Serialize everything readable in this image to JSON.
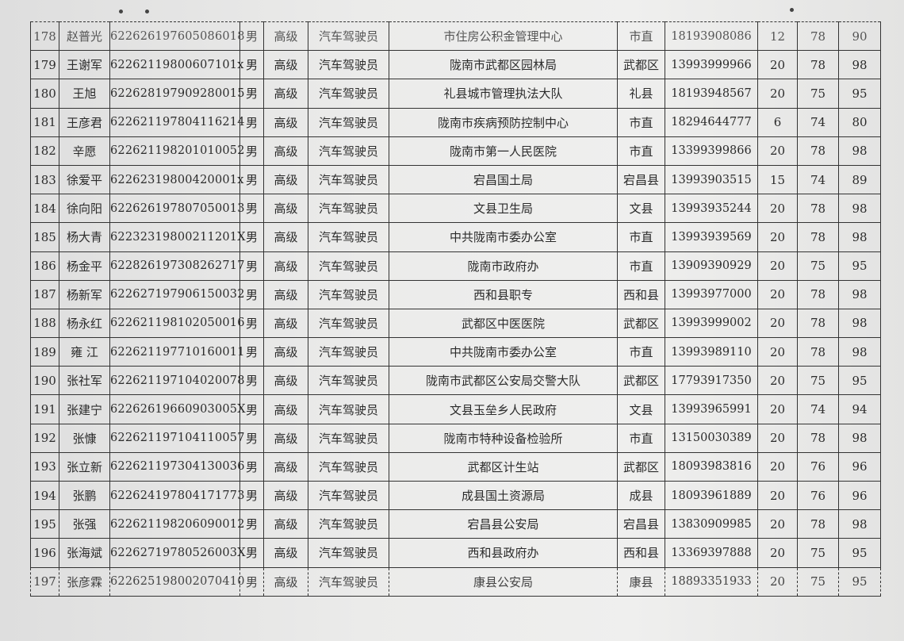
{
  "table": {
    "rows": [
      [
        "178",
        "赵普光",
        "622626197605086018",
        "男",
        "高级",
        "汽车驾驶员",
        "市住房公积金管理中心",
        "市直",
        "18193908086",
        "12",
        "78",
        "90"
      ],
      [
        "179",
        "王谢军",
        "62262119800607101x",
        "男",
        "高级",
        "汽车驾驶员",
        "陇南市武都区园林局",
        "武都区",
        "13993999966",
        "20",
        "78",
        "98"
      ],
      [
        "180",
        "王旭",
        "622628197909280015",
        "男",
        "高级",
        "汽车驾驶员",
        "礼县城市管理执法大队",
        "礼县",
        "18193948567",
        "20",
        "75",
        "95"
      ],
      [
        "181",
        "王彦君",
        "622621197804116214",
        "男",
        "高级",
        "汽车驾驶员",
        "陇南市疾病预防控制中心",
        "市直",
        "18294644777",
        "6",
        "74",
        "80"
      ],
      [
        "182",
        "辛愿",
        "622621198201010052",
        "男",
        "高级",
        "汽车驾驶员",
        "陇南市第一人民医院",
        "市直",
        "13399399866",
        "20",
        "78",
        "98"
      ],
      [
        "183",
        "徐爱平",
        "62262319800420001x",
        "男",
        "高级",
        "汽车驾驶员",
        "宕昌国土局",
        "宕昌县",
        "13993903515",
        "15",
        "74",
        "89"
      ],
      [
        "184",
        "徐向阳",
        "622626197807050013",
        "男",
        "高级",
        "汽车驾驶员",
        "文县卫生局",
        "文县",
        "13993935244",
        "20",
        "78",
        "98"
      ],
      [
        "185",
        "杨大青",
        "62232319800211201X",
        "男",
        "高级",
        "汽车驾驶员",
        "中共陇南市委办公室",
        "市直",
        "13993939569",
        "20",
        "78",
        "98"
      ],
      [
        "186",
        "杨金平",
        "622826197308262717",
        "男",
        "高级",
        "汽车驾驶员",
        "陇南市政府办",
        "市直",
        "13909390929",
        "20",
        "75",
        "95"
      ],
      [
        "187",
        "杨新军",
        "622627197906150032",
        "男",
        "高级",
        "汽车驾驶员",
        "西和县职专",
        "西和县",
        "13993977000",
        "20",
        "78",
        "98"
      ],
      [
        "188",
        "杨永红",
        "622621198102050016",
        "男",
        "高级",
        "汽车驾驶员",
        "武都区中医医院",
        "武都区",
        "13993999002",
        "20",
        "78",
        "98"
      ],
      [
        "189",
        "雍 江",
        "622621197710160011",
        "男",
        "高级",
        "汽车驾驶员",
        "中共陇南市委办公室",
        "市直",
        "13993989110",
        "20",
        "78",
        "98"
      ],
      [
        "190",
        "张社军",
        "622621197104020078",
        "男",
        "高级",
        "汽车驾驶员",
        "陇南市武都区公安局交警大队",
        "武都区",
        "17793917350",
        "20",
        "75",
        "95"
      ],
      [
        "191",
        "张建宁",
        "62262619660903005X",
        "男",
        "高级",
        "汽车驾驶员",
        "文县玉垒乡人民政府",
        "文县",
        "13993965991",
        "20",
        "74",
        "94"
      ],
      [
        "192",
        "张慷",
        "622621197104110057",
        "男",
        "高级",
        "汽车驾驶员",
        "陇南市特种设备检验所",
        "市直",
        "13150030389",
        "20",
        "78",
        "98"
      ],
      [
        "193",
        "张立新",
        "622621197304130036",
        "男",
        "高级",
        "汽车驾驶员",
        "武都区计生站",
        "武都区",
        "18093983816",
        "20",
        "76",
        "96"
      ],
      [
        "194",
        "张鹏",
        "622624197804171773",
        "男",
        "高级",
        "汽车驾驶员",
        "成县国土资源局",
        "成县",
        "18093961889",
        "20",
        "76",
        "96"
      ],
      [
        "195",
        "张强",
        "622621198206090012",
        "男",
        "高级",
        "汽车驾驶员",
        "宕昌县公安局",
        "宕昌县",
        "13830909985",
        "20",
        "78",
        "98"
      ],
      [
        "196",
        "张海斌",
        "62262719780526003X",
        "男",
        "高级",
        "汽车驾驶员",
        "西和县政府办",
        "西和县",
        "13369397888",
        "20",
        "75",
        "95"
      ],
      [
        "197",
        "张彦霖",
        "622625198002070410",
        "男",
        "高级",
        "汽车驾驶员",
        "康县公安局",
        "康县",
        "18893351933",
        "20",
        "75",
        "95"
      ]
    ]
  }
}
